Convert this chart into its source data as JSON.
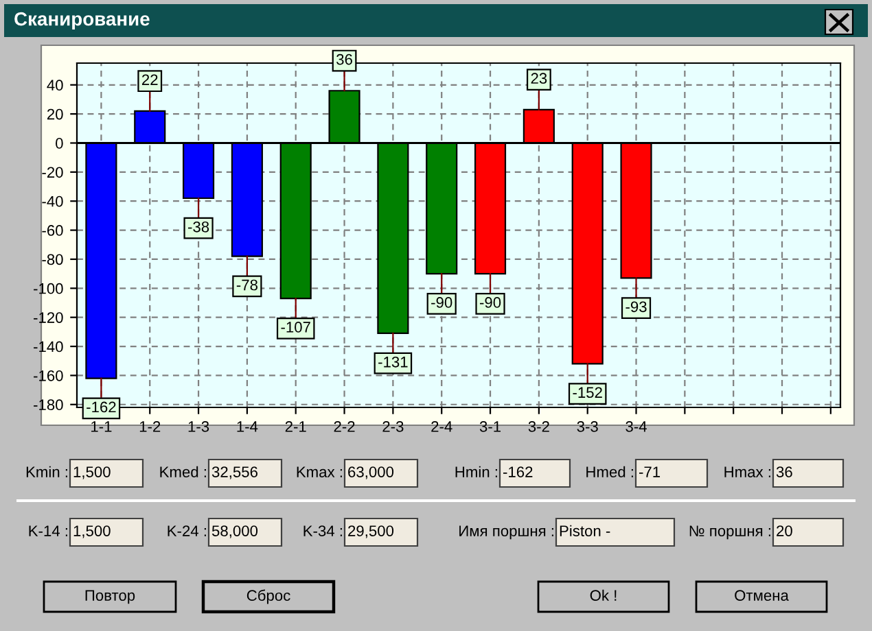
{
  "chart_data": {
    "type": "bar",
    "title": "Сканирование",
    "categories": [
      "1-1",
      "1-2",
      "1-3",
      "1-4",
      "2-1",
      "2-2",
      "2-3",
      "2-4",
      "3-1",
      "3-2",
      "3-3",
      "3-4",
      null,
      null,
      null,
      null
    ],
    "values": [
      -162,
      22,
      -38,
      -78,
      -107,
      36,
      -131,
      -90,
      -90,
      23,
      -152,
      -93,
      null,
      null,
      null,
      null
    ],
    "colors": [
      "#0000ff",
      "#0000ff",
      "#0000ff",
      "#0000ff",
      "#008000",
      "#008000",
      "#008000",
      "#008000",
      "#ff0000",
      "#ff0000",
      "#ff0000",
      "#ff0000",
      null,
      null,
      null,
      null
    ],
    "ylim": [
      -182,
      55
    ],
    "yticks": [
      -180,
      -160,
      -140,
      -120,
      -100,
      -80,
      -60,
      -40,
      -20,
      0,
      20,
      40
    ],
    "grid": true,
    "data_labels": true,
    "annotations": [
      "Kmin :",
      "1,500",
      "Kmed :",
      "32,556",
      "Kmax :",
      "63,000",
      "Hmin :",
      "-162",
      "Hmed :",
      "-71",
      "Hmax :",
      "36",
      "K-14 :",
      "1,500",
      "K-24 :",
      "58,000",
      "K-34 :",
      "29,500",
      "Имя поршня :",
      "Piston -",
      "№ поршня :",
      "20",
      "Повтор",
      "Сброс",
      "Ok !",
      "Отмена"
    ]
  }
}
